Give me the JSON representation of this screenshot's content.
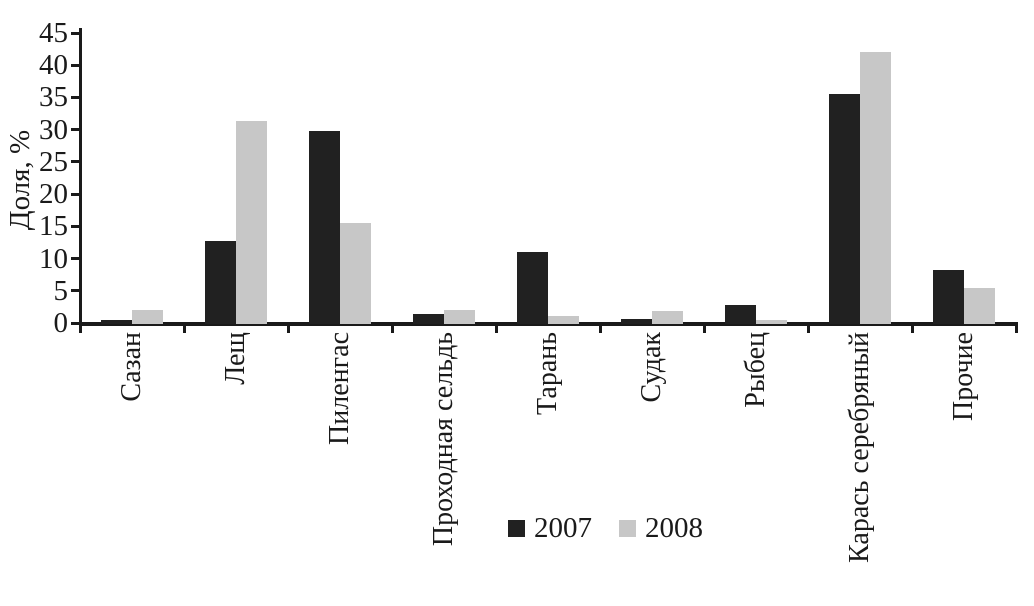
{
  "chart_data": {
    "type": "bar",
    "title": "",
    "xlabel": "",
    "ylabel": "Доля, %",
    "ylim": [
      0,
      45
    ],
    "yticks": [
      0,
      5,
      10,
      15,
      20,
      25,
      30,
      35,
      40,
      45
    ],
    "grid": false,
    "legend_position": "bottom-center",
    "categories": [
      "Сазан",
      "Лещ",
      "Пиленгас",
      "Проходная сельдь",
      "Тарань",
      "Судак",
      "Рыбец",
      "Карась серебряный",
      "Прочие"
    ],
    "series": [
      {
        "name": "2007",
        "color": "#212121",
        "values": [
          0.5,
          12.8,
          29.8,
          1.4,
          11.0,
          0.6,
          2.8,
          35.5,
          8.3
        ]
      },
      {
        "name": "2008",
        "color": "#c7c7c7",
        "values": [
          2.0,
          31.3,
          15.5,
          2.0,
          1.1,
          1.9,
          0.5,
          42.0,
          5.4
        ]
      }
    ]
  },
  "colors": {
    "axis": "#1a1a1a",
    "background": "#ffffff"
  }
}
